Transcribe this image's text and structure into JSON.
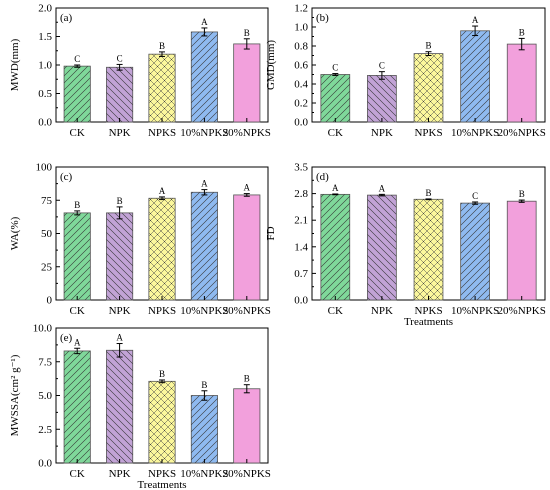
{
  "colors": {
    "CK": "#7fd89a",
    "NPK": "#c2a3d6",
    "NPKS": "#fbf79c",
    "10%NPKS": "#8fbaf0",
    "20%NPKS": "#f2a0dc"
  },
  "chart_data": [
    {
      "type": "bar",
      "panel_label": "(a)",
      "ylabel": "MWD(mm)",
      "xlabel": "",
      "categories": [
        "CK",
        "NPK",
        "NPKS",
        "10%NPKS",
        "20%NPKS"
      ],
      "values": [
        0.98,
        0.96,
        1.19,
        1.58,
        1.37
      ],
      "errors": [
        0.02,
        0.05,
        0.04,
        0.07,
        0.09
      ],
      "letters": [
        "C",
        "C",
        "B",
        "A",
        "B"
      ],
      "ylim": [
        0,
        2.0
      ],
      "yticks": [
        "0.0",
        "0.5",
        "1.0",
        "1.5",
        "2.0"
      ],
      "tickvals": [
        0,
        0.5,
        1.0,
        1.5,
        2.0
      ],
      "hatch": [
        "right",
        "left",
        "cross",
        "right",
        "none"
      ]
    },
    {
      "type": "bar",
      "panel_label": "(b)",
      "ylabel": "GMD(mm)",
      "xlabel": "",
      "categories": [
        "CK",
        "NPK",
        "NPKS",
        "10%NPKS",
        "20%NPKS"
      ],
      "values": [
        0.5,
        0.49,
        0.72,
        0.96,
        0.82
      ],
      "errors": [
        0.01,
        0.04,
        0.02,
        0.05,
        0.06
      ],
      "letters": [
        "C",
        "C",
        "B",
        "A",
        "B"
      ],
      "ylim": [
        0,
        1.2
      ],
      "yticks": [
        "0.0",
        "0.2",
        "0.4",
        "0.6",
        "0.8",
        "1.0",
        "1.2"
      ],
      "tickvals": [
        0,
        0.2,
        0.4,
        0.6,
        0.8,
        1.0,
        1.2
      ],
      "hatch": [
        "right",
        "left",
        "cross",
        "right",
        "none"
      ]
    },
    {
      "type": "bar",
      "panel_label": "(c)",
      "ylabel": "WA(%)",
      "xlabel": "",
      "categories": [
        "CK",
        "NPK",
        "NPKS",
        "10%NPKS",
        "20%NPKS"
      ],
      "values": [
        65.5,
        65.5,
        76.5,
        81,
        79
      ],
      "errors": [
        1.5,
        4.5,
        1.0,
        2.0,
        1.0
      ],
      "letters": [
        "B",
        "B",
        "A",
        "A",
        "A"
      ],
      "ylim": [
        0,
        100
      ],
      "yticks": [
        "0",
        "25",
        "50",
        "75",
        "100"
      ],
      "tickvals": [
        0,
        25,
        50,
        75,
        100
      ],
      "hatch": [
        "right",
        "left",
        "cross",
        "right",
        "none"
      ]
    },
    {
      "type": "bar",
      "panel_label": "(d)",
      "ylabel": "FD",
      "xlabel": "Treatments",
      "categories": [
        "CK",
        "NPK",
        "NPKS",
        "10%NPKS",
        "20%NPKS"
      ],
      "values": [
        2.78,
        2.76,
        2.65,
        2.55,
        2.6
      ],
      "errors": [
        0.01,
        0.02,
        0.01,
        0.03,
        0.03
      ],
      "letters": [
        "A",
        "A",
        "B",
        "C",
        "B"
      ],
      "ylim": [
        0,
        3.5
      ],
      "yticks": [
        "0.0",
        "0.7",
        "1.4",
        "2.1",
        "2.8",
        "3.5"
      ],
      "tickvals": [
        0,
        0.7,
        1.4,
        2.1,
        2.8,
        3.5
      ],
      "hatch": [
        "right",
        "left",
        "cross",
        "right",
        "none"
      ]
    },
    {
      "type": "bar",
      "panel_label": "(e)",
      "ylabel": "MWSSA(cm² g⁻¹)",
      "xlabel": "Treatments",
      "categories": [
        "CK",
        "NPK",
        "NPKS",
        "10%NPKS",
        "20%NPKS"
      ],
      "values": [
        8.3,
        8.35,
        6.05,
        5.0,
        5.5
      ],
      "errors": [
        0.2,
        0.5,
        0.1,
        0.35,
        0.3
      ],
      "letters": [
        "A",
        "A",
        "B",
        "B",
        "B"
      ],
      "ylim": [
        0,
        10.0
      ],
      "yticks": [
        "0.0",
        "2.5",
        "5.0",
        "7.5",
        "10.0"
      ],
      "tickvals": [
        0,
        2.5,
        5.0,
        7.5,
        10.0
      ],
      "hatch": [
        "right",
        "left",
        "cross",
        "right",
        "none"
      ]
    }
  ]
}
